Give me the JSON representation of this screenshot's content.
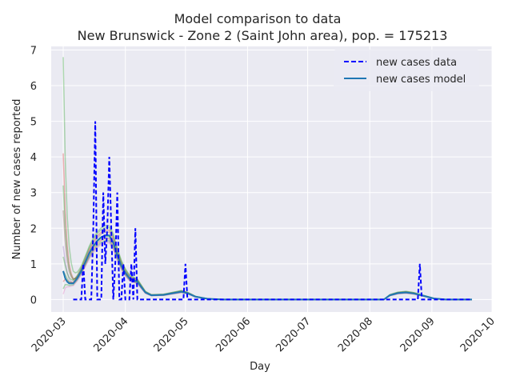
{
  "chart_data": {
    "type": "line",
    "title": "Model comparison to data",
    "subtitle": "New Brunswick - Zone 2 (Saint John area), pop. = 175213",
    "xlabel": "Day",
    "ylabel": "Number of new cases reported",
    "x_tick_labels": [
      "2020-03",
      "2020-04",
      "2020-05",
      "2020-06",
      "2020-07",
      "2020-08",
      "2020-09",
      "2020-10"
    ],
    "y_tick_labels": [
      "0",
      "1",
      "2",
      "3",
      "4",
      "5",
      "6",
      "7"
    ],
    "xlim": [
      "2020-02-24",
      "2020-10-01"
    ],
    "ylim": [
      -0.35,
      7.1
    ],
    "grid": true,
    "legend_position": "top-right",
    "series": [
      {
        "name": "new cases data",
        "color": "#0000ff",
        "style": "dashed",
        "points": [
          [
            "2020-03-06",
            0
          ],
          [
            "2020-03-07",
            0
          ],
          [
            "2020-03-08",
            0
          ],
          [
            "2020-03-09",
            0
          ],
          [
            "2020-03-10",
            0
          ],
          [
            "2020-03-11",
            1
          ],
          [
            "2020-03-12",
            0
          ],
          [
            "2020-03-13",
            0
          ],
          [
            "2020-03-14",
            0
          ],
          [
            "2020-03-15",
            0
          ],
          [
            "2020-03-16",
            2
          ],
          [
            "2020-03-17",
            5
          ],
          [
            "2020-03-18",
            0
          ],
          [
            "2020-03-19",
            0
          ],
          [
            "2020-03-20",
            0
          ],
          [
            "2020-03-21",
            3
          ],
          [
            "2020-03-22",
            1
          ],
          [
            "2020-03-23",
            2
          ],
          [
            "2020-03-24",
            4
          ],
          [
            "2020-03-25",
            2
          ],
          [
            "2020-03-26",
            0
          ],
          [
            "2020-03-27",
            1
          ],
          [
            "2020-03-28",
            3
          ],
          [
            "2020-03-29",
            0
          ],
          [
            "2020-03-30",
            0
          ],
          [
            "2020-03-31",
            1
          ],
          [
            "2020-04-01",
            0
          ],
          [
            "2020-04-02",
            0
          ],
          [
            "2020-04-03",
            0
          ],
          [
            "2020-04-04",
            1
          ],
          [
            "2020-04-05",
            0
          ],
          [
            "2020-04-06",
            2
          ],
          [
            "2020-04-07",
            0
          ],
          [
            "2020-04-08",
            0
          ],
          [
            "2020-04-30",
            0
          ],
          [
            "2020-05-01",
            1
          ],
          [
            "2020-05-02",
            0
          ],
          [
            "2020-08-25",
            0
          ],
          [
            "2020-08-26",
            1
          ],
          [
            "2020-08-27",
            0
          ],
          [
            "2020-09-21",
            0
          ]
        ]
      },
      {
        "name": "new cases model",
        "color": "#1f77b4",
        "style": "solid",
        "points": [
          [
            "2020-03-01",
            0.8
          ],
          [
            "2020-03-02",
            0.6
          ],
          [
            "2020-03-03",
            0.5
          ],
          [
            "2020-03-04",
            0.45
          ],
          [
            "2020-03-06",
            0.45
          ],
          [
            "2020-03-08",
            0.6
          ],
          [
            "2020-03-10",
            0.8
          ],
          [
            "2020-03-12",
            1.05
          ],
          [
            "2020-03-14",
            1.3
          ],
          [
            "2020-03-16",
            1.5
          ],
          [
            "2020-03-18",
            1.65
          ],
          [
            "2020-03-20",
            1.75
          ],
          [
            "2020-03-22",
            1.8
          ],
          [
            "2020-03-24",
            1.8
          ],
          [
            "2020-03-26",
            1.6
          ],
          [
            "2020-03-28",
            1.25
          ],
          [
            "2020-03-30",
            0.95
          ],
          [
            "2020-04-01",
            0.75
          ],
          [
            "2020-04-03",
            0.6
          ],
          [
            "2020-04-05",
            0.55
          ],
          [
            "2020-04-07",
            0.5
          ],
          [
            "2020-04-09",
            0.35
          ],
          [
            "2020-04-11",
            0.2
          ],
          [
            "2020-04-14",
            0.12
          ],
          [
            "2020-04-20",
            0.13
          ],
          [
            "2020-04-25",
            0.18
          ],
          [
            "2020-04-29",
            0.22
          ],
          [
            "2020-05-02",
            0.18
          ],
          [
            "2020-05-06",
            0.08
          ],
          [
            "2020-05-12",
            0.02
          ],
          [
            "2020-05-20",
            0.0
          ],
          [
            "2020-08-08",
            0.0
          ],
          [
            "2020-08-11",
            0.12
          ],
          [
            "2020-08-15",
            0.18
          ],
          [
            "2020-08-19",
            0.2
          ],
          [
            "2020-08-23",
            0.17
          ],
          [
            "2020-08-28",
            0.1
          ],
          [
            "2020-09-02",
            0.03
          ],
          [
            "2020-09-08",
            0.0
          ],
          [
            "2020-09-21",
            0.0
          ]
        ]
      }
    ],
    "ensemble": {
      "colors": [
        "#d62728",
        "#2ca02c",
        "#2ca02c",
        "#9467bd",
        "#d62728",
        "#2ca02c",
        "#8c564b",
        "#2ca02c",
        "#e377c2",
        "#2ca02c"
      ],
      "start_values": [
        4.1,
        6.8,
        3.2,
        1.5,
        0.5,
        0.3,
        2.5,
        0.8,
        0.15,
        1.2
      ],
      "amplitudes": [
        0.95,
        1.15,
        1.0,
        0.9,
        1.08,
        0.92,
        1.05,
        0.98,
        0.88,
        1.12
      ]
    }
  }
}
